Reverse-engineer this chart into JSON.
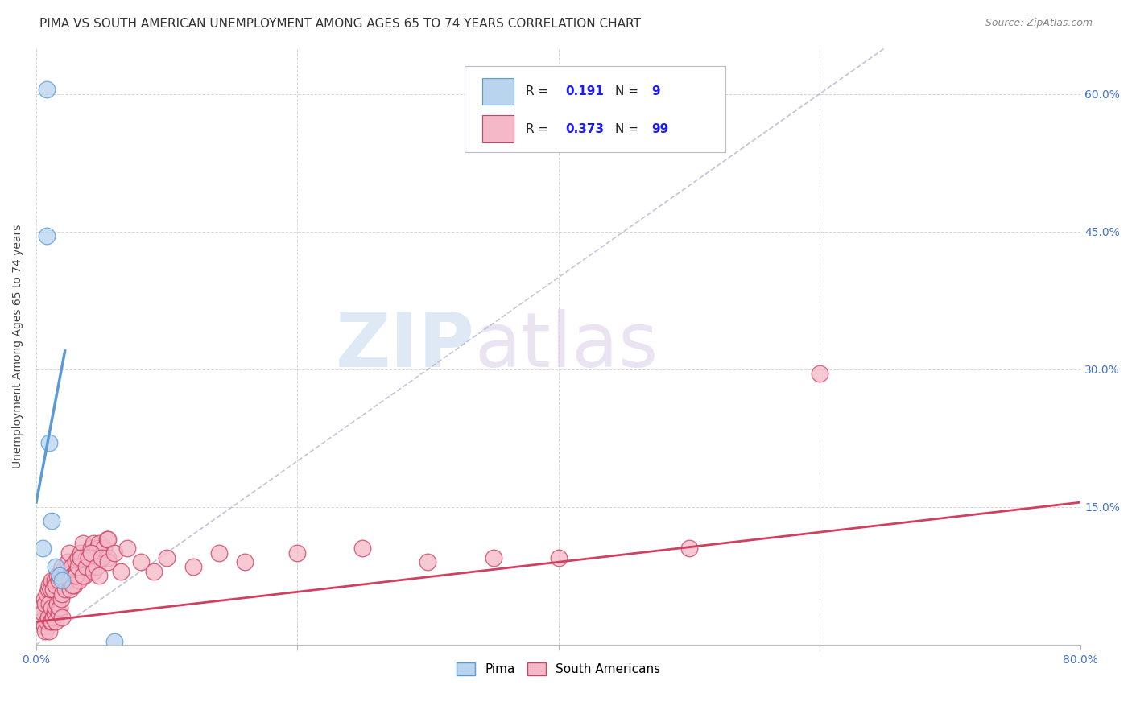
{
  "title": "PIMA VS SOUTH AMERICAN UNEMPLOYMENT AMONG AGES 65 TO 74 YEARS CORRELATION CHART",
  "source": "Source: ZipAtlas.com",
  "ylabel": "Unemployment Among Ages 65 to 74 years",
  "xlim": [
    0.0,
    0.8
  ],
  "ylim": [
    0.0,
    0.65
  ],
  "ytick_positions": [
    0.0,
    0.15,
    0.3,
    0.45,
    0.6
  ],
  "xtick_positions": [
    0.0,
    0.2,
    0.4,
    0.6,
    0.8
  ],
  "pima_color": "#b8d4ee",
  "pima_edge_color": "#5b9bd5",
  "sa_color": "#f4b8c8",
  "sa_edge_color": "#d04060",
  "pima_R": "0.191",
  "pima_N": "9",
  "sa_R": "0.373",
  "sa_N": "99",
  "pima_scatter_x": [
    0.008,
    0.008,
    0.01,
    0.012,
    0.015,
    0.018,
    0.02,
    0.005,
    0.06
  ],
  "pima_scatter_y": [
    0.605,
    0.445,
    0.22,
    0.135,
    0.085,
    0.075,
    0.07,
    0.105,
    0.003
  ],
  "sa_scatter_x": [
    0.003,
    0.004,
    0.005,
    0.006,
    0.006,
    0.007,
    0.007,
    0.008,
    0.008,
    0.009,
    0.009,
    0.01,
    0.01,
    0.01,
    0.011,
    0.011,
    0.012,
    0.012,
    0.012,
    0.013,
    0.013,
    0.014,
    0.014,
    0.015,
    0.015,
    0.015,
    0.016,
    0.016,
    0.017,
    0.017,
    0.018,
    0.018,
    0.019,
    0.019,
    0.02,
    0.02,
    0.02,
    0.021,
    0.022,
    0.023,
    0.024,
    0.025,
    0.025,
    0.026,
    0.027,
    0.028,
    0.029,
    0.03,
    0.031,
    0.032,
    0.033,
    0.034,
    0.035,
    0.036,
    0.037,
    0.038,
    0.039,
    0.04,
    0.041,
    0.042,
    0.043,
    0.044,
    0.045,
    0.047,
    0.048,
    0.05,
    0.052,
    0.054,
    0.055,
    0.055,
    0.028,
    0.03,
    0.032,
    0.034,
    0.036,
    0.038,
    0.04,
    0.042,
    0.044,
    0.046,
    0.048,
    0.05,
    0.055,
    0.06,
    0.065,
    0.07,
    0.08,
    0.09,
    0.1,
    0.12,
    0.14,
    0.16,
    0.2,
    0.25,
    0.3,
    0.35,
    0.4,
    0.5,
    0.6
  ],
  "sa_scatter_y": [
    0.04,
    0.025,
    0.035,
    0.05,
    0.02,
    0.045,
    0.015,
    0.055,
    0.025,
    0.06,
    0.03,
    0.045,
    0.065,
    0.015,
    0.06,
    0.025,
    0.07,
    0.04,
    0.025,
    0.06,
    0.03,
    0.07,
    0.035,
    0.065,
    0.04,
    0.025,
    0.075,
    0.045,
    0.07,
    0.035,
    0.075,
    0.04,
    0.08,
    0.05,
    0.085,
    0.055,
    0.03,
    0.075,
    0.06,
    0.08,
    0.09,
    0.07,
    0.1,
    0.06,
    0.085,
    0.075,
    0.065,
    0.09,
    0.08,
    0.095,
    0.07,
    0.1,
    0.085,
    0.11,
    0.075,
    0.095,
    0.08,
    0.095,
    0.085,
    0.105,
    0.09,
    0.11,
    0.095,
    0.105,
    0.11,
    0.095,
    0.105,
    0.115,
    0.095,
    0.115,
    0.065,
    0.075,
    0.085,
    0.095,
    0.075,
    0.085,
    0.095,
    0.1,
    0.08,
    0.085,
    0.075,
    0.095,
    0.09,
    0.1,
    0.08,
    0.105,
    0.09,
    0.08,
    0.095,
    0.085,
    0.1,
    0.09,
    0.1,
    0.105,
    0.09,
    0.095,
    0.095,
    0.105,
    0.295
  ],
  "pima_line_x": [
    0.0,
    0.022
  ],
  "pima_line_y": [
    0.155,
    0.32
  ],
  "sa_line_x": [
    0.0,
    0.8
  ],
  "sa_line_y": [
    0.025,
    0.155
  ],
  "diagonal_line_x": [
    0.0,
    0.65
  ],
  "diagonal_line_y": [
    0.0,
    0.65
  ],
  "watermark_zip": "ZIP",
  "watermark_atlas": "atlas",
  "background_color": "#ffffff",
  "grid_color": "#cccccc",
  "title_fontsize": 11,
  "axis_label_fontsize": 10,
  "tick_fontsize": 10,
  "tick_color": "#4472c4",
  "legend_R_color": "#1a1aff",
  "legend_box_color": "#e8e8f0"
}
